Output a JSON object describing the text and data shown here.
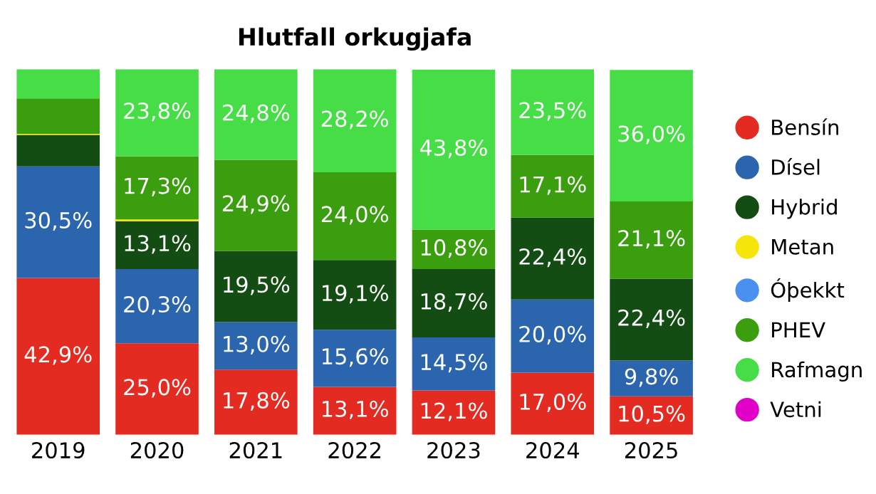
{
  "chart_data": {
    "type": "bar",
    "title": "Hlutfall orkugjafa",
    "stacked": true,
    "legend": "right",
    "grid": false,
    "categories": [
      "2019",
      "2020",
      "2021",
      "2022",
      "2023",
      "2024",
      "2025"
    ],
    "series": [
      {
        "name": "Bensín",
        "color": "#e32b22",
        "values": [
          42.9,
          25.0,
          17.8,
          13.1,
          12.1,
          17.0,
          10.5
        ],
        "value_labels": [
          "42,9%",
          "25,0%",
          "17,8%",
          "13,1%",
          "12,1%",
          "17,0%",
          "10,5%"
        ]
      },
      {
        "name": "Dísel",
        "color": "#2a65ad",
        "values": [
          30.5,
          20.3,
          13.0,
          15.6,
          14.5,
          20.0,
          9.8
        ],
        "value_labels": [
          "30,5%",
          "20,3%",
          "13,0%",
          "15,6%",
          "14,5%",
          "20,0%",
          "9,8%"
        ]
      },
      {
        "name": "Hybrid",
        "color": "#144d14",
        "values": [
          8.6,
          13.1,
          19.5,
          19.1,
          18.7,
          22.4,
          22.4
        ],
        "value_labels": [
          null,
          "13,1%",
          "19,5%",
          "19,1%",
          "18,7%",
          "22,4%",
          "22,4%"
        ]
      },
      {
        "name": "Metan",
        "color": "#f5e50a",
        "values": [
          0.3,
          0.5,
          0,
          0,
          0,
          0,
          0
        ],
        "value_labels": [
          null,
          null,
          null,
          null,
          null,
          null,
          null
        ]
      },
      {
        "name": "Óþekkt",
        "color": "#4a90f0",
        "values": [
          0,
          0,
          0,
          0,
          0,
          0,
          0
        ],
        "value_labels": [
          null,
          null,
          null,
          null,
          null,
          null,
          null
        ]
      },
      {
        "name": "PHEV",
        "color": "#3a9e0e",
        "values": [
          9.7,
          17.3,
          24.9,
          24.0,
          10.8,
          17.1,
          21.1
        ],
        "value_labels": [
          null,
          "17,3%",
          "24,9%",
          "24,0%",
          "10,8%",
          "17,1%",
          "21,1%"
        ]
      },
      {
        "name": "Rafmagn",
        "color": "#46dd46",
        "values": [
          8.0,
          23.8,
          24.8,
          28.2,
          43.8,
          23.5,
          36.0
        ],
        "value_labels": [
          null,
          "23,8%",
          "24,8%",
          "28,2%",
          "43,8%",
          "23,5%",
          "36,0%"
        ]
      },
      {
        "name": "Vetni",
        "color": "#e000c8",
        "values": [
          0,
          0,
          0,
          0,
          0,
          0,
          0
        ],
        "value_labels": [
          null,
          null,
          null,
          null,
          null,
          null,
          null
        ]
      }
    ]
  }
}
